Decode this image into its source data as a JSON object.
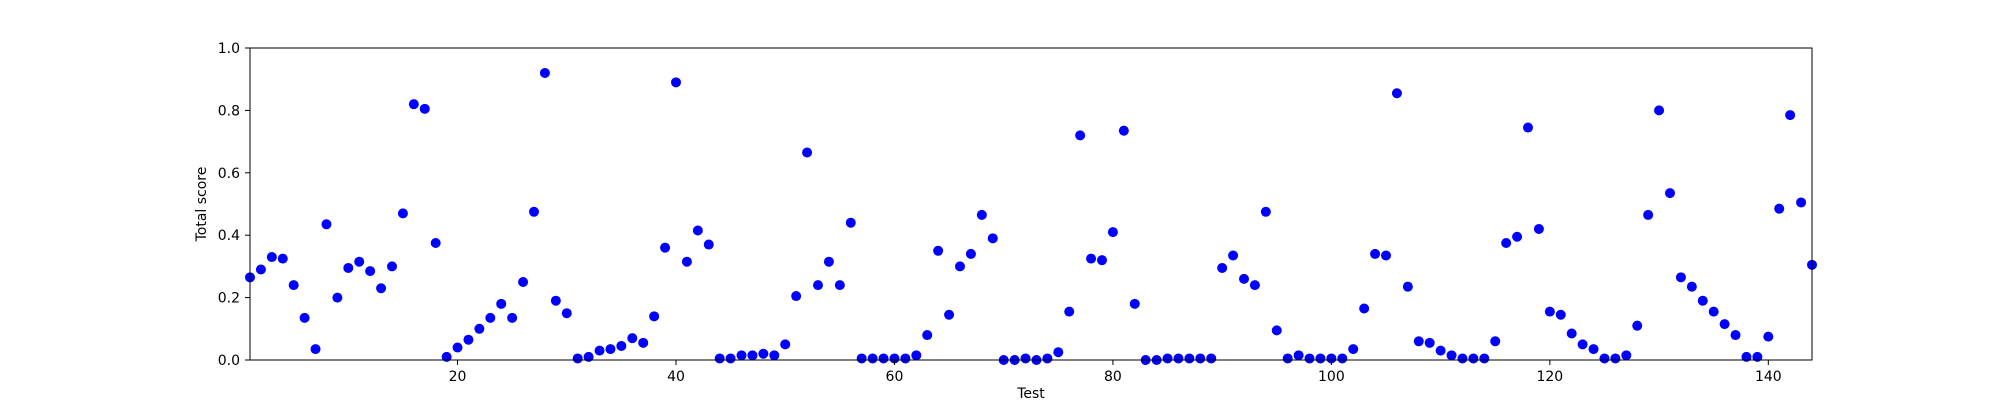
{
  "chart_data": {
    "type": "scatter",
    "title": "",
    "xlabel": "Test",
    "ylabel": "Total score",
    "xlim": [
      1,
      144
    ],
    "ylim": [
      0.0,
      1.0
    ],
    "x_ticks": [
      20,
      40,
      60,
      80,
      100,
      120,
      140
    ],
    "y_ticks": [
      0.0,
      0.2,
      0.4,
      0.6,
      0.8,
      1.0
    ],
    "y_tick_labels": [
      "0.0",
      "0.2",
      "0.4",
      "0.6",
      "0.8",
      "1.0"
    ],
    "grid": false,
    "marker_color": "#0000ff",
    "series": [
      {
        "x": [
          1,
          2,
          3,
          4,
          5,
          6,
          7,
          8,
          9,
          10,
          11,
          12,
          13,
          14,
          15,
          16,
          17,
          18,
          19,
          20,
          21,
          22,
          23,
          24,
          25,
          26,
          27,
          28,
          29,
          30,
          31,
          32,
          33,
          34,
          35,
          36,
          37,
          38,
          39,
          40,
          41,
          42,
          43,
          44,
          45,
          46,
          47,
          48,
          49,
          50,
          51,
          52,
          53,
          54,
          55,
          56,
          57,
          58,
          59,
          60,
          61,
          62,
          63,
          64,
          65,
          66,
          67,
          68,
          69,
          70,
          71,
          72,
          73,
          74,
          75,
          76,
          77,
          78,
          79,
          80,
          81,
          82,
          83,
          84,
          85,
          86,
          87,
          88,
          89,
          90,
          91,
          92,
          93,
          94,
          95,
          96,
          97,
          98,
          99,
          100,
          101,
          102,
          103,
          104,
          105,
          106,
          107,
          108,
          109,
          110,
          111,
          112,
          113,
          114,
          115,
          116,
          117,
          118,
          119,
          120,
          121,
          122,
          123,
          124,
          125,
          126,
          127,
          128,
          129,
          130,
          131,
          132,
          133,
          134,
          135,
          136,
          137,
          138,
          139,
          140,
          141,
          142,
          143,
          144
        ],
        "y": [
          0.265,
          0.29,
          0.33,
          0.325,
          0.24,
          0.135,
          0.035,
          0.435,
          0.2,
          0.295,
          0.315,
          0.285,
          0.23,
          0.3,
          0.47,
          0.82,
          0.805,
          0.375,
          0.01,
          0.04,
          0.065,
          0.1,
          0.135,
          0.18,
          0.135,
          0.25,
          0.475,
          0.92,
          0.19,
          0.15,
          0.005,
          0.01,
          0.03,
          0.035,
          0.045,
          0.07,
          0.055,
          0.14,
          0.36,
          0.89,
          0.315,
          0.415,
          0.37,
          0.005,
          0.005,
          0.015,
          0.015,
          0.02,
          0.015,
          0.05,
          0.205,
          0.665,
          0.24,
          0.315,
          0.24,
          0.44,
          0.005,
          0.005,
          0.005,
          0.005,
          0.005,
          0.015,
          0.08,
          0.35,
          0.145,
          0.3,
          0.34,
          0.465,
          0.39,
          0.0,
          0.0,
          0.005,
          0.0,
          0.005,
          0.025,
          0.155,
          0.72,
          0.325,
          0.32,
          0.41,
          0.735,
          0.18,
          0.0,
          0.0,
          0.005,
          0.005,
          0.005,
          0.005,
          0.005,
          0.295,
          0.335,
          0.26,
          0.24,
          0.475,
          0.095,
          0.005,
          0.015,
          0.005,
          0.005,
          0.005,
          0.005,
          0.035,
          0.165,
          0.34,
          0.335,
          0.855,
          0.235,
          0.06,
          0.055,
          0.03,
          0.015,
          0.005,
          0.005,
          0.005,
          0.06,
          0.375,
          0.395,
          0.745,
          0.42,
          0.155,
          0.145,
          0.085,
          0.05,
          0.035,
          0.005,
          0.005,
          0.015,
          0.11,
          0.465,
          0.8,
          0.535,
          0.265,
          0.235,
          0.19,
          0.155,
          0.115,
          0.08,
          0.01,
          0.01,
          0.075,
          0.485,
          0.785,
          0.505,
          0.305
        ]
      }
    ]
  }
}
